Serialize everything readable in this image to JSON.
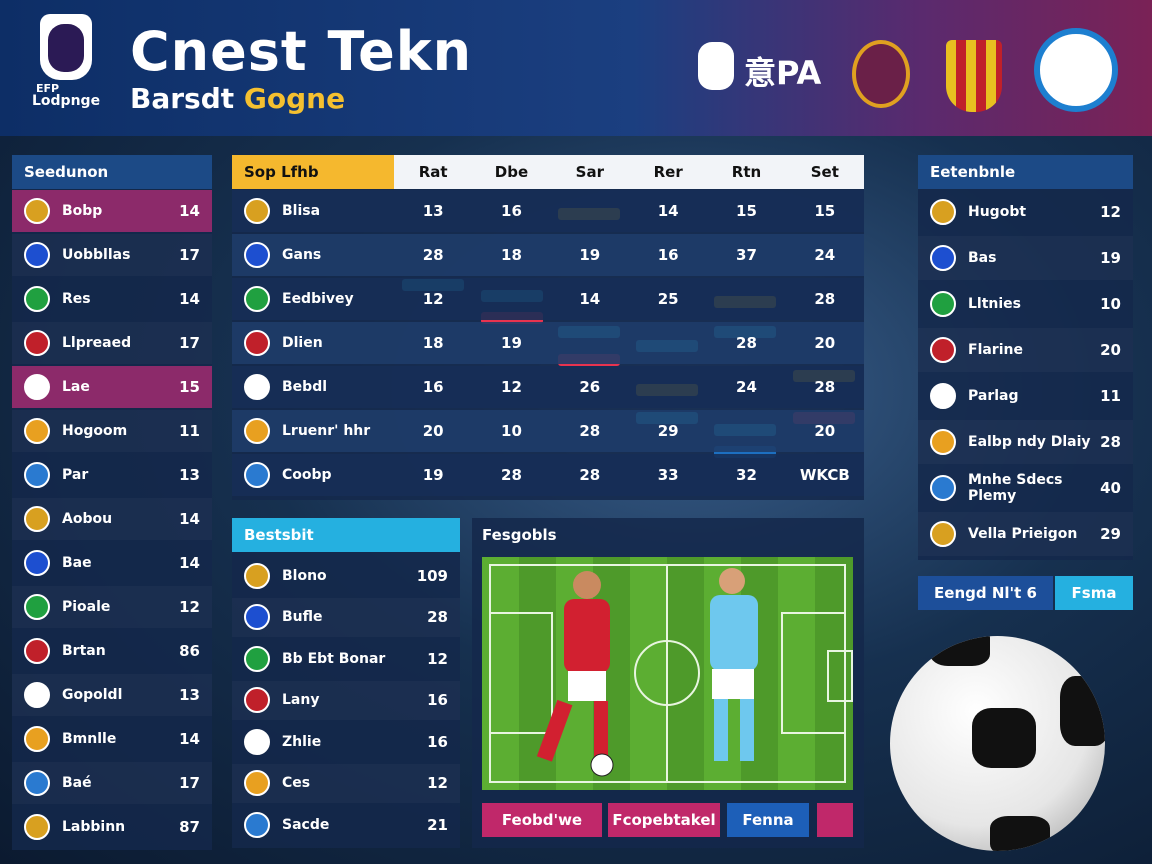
{
  "header": {
    "logo": "Lodpnge",
    "logo_top": "EFP",
    "title": "Cnest Tekn",
    "subtitle_a": "Barsdt",
    "subtitle_b": "Gogne",
    "badge": "意PA"
  },
  "left_panel": {
    "title": "Seedunon",
    "rows": [
      {
        "name": "Bobp",
        "value": 14
      },
      {
        "name": "Uobbllas",
        "value": 17
      },
      {
        "name": "Res",
        "value": 14
      },
      {
        "name": "Llpreaed",
        "value": 17
      },
      {
        "name": "Lae",
        "value": 15
      },
      {
        "name": "Hogoom",
        "value": 11
      },
      {
        "name": "Par",
        "value": 13
      },
      {
        "name": "Aobou",
        "value": 14
      },
      {
        "name": "Bae",
        "value": 14
      },
      {
        "name": "Pioale",
        "value": 12
      },
      {
        "name": "Brtan",
        "value": 86
      },
      {
        "name": "Gopoldl",
        "value": 13
      },
      {
        "name": "Bmnlle",
        "value": 14
      },
      {
        "name": "Baé",
        "value": 17
      },
      {
        "name": "Labbinn",
        "value": 87
      }
    ]
  },
  "table": {
    "columns": [
      "Sop Lfhb",
      "Rat",
      "Dbe",
      "Sar",
      "Rer",
      "Rtn",
      "Set"
    ],
    "rows": [
      [
        "Blisa",
        13,
        16,
        null,
        14,
        15,
        15
      ],
      [
        "Gans",
        28,
        18,
        19,
        16,
        37,
        24
      ],
      [
        "Eedbivey",
        12,
        null,
        14,
        25,
        null,
        28
      ],
      [
        "Dlien",
        18,
        19,
        null,
        null,
        28,
        20
      ],
      [
        "Bebdl",
        16,
        12,
        26,
        null,
        24,
        28
      ],
      [
        "Lruenr' hhr",
        20,
        10,
        28,
        29,
        null,
        20
      ],
      [
        "Coobp",
        19,
        28,
        28,
        33,
        32,
        "WKCB"
      ]
    ]
  },
  "best_list": {
    "title": "Bestsbit",
    "rows": [
      {
        "name": "Blono",
        "value": 109
      },
      {
        "name": "Bufle",
        "value": 28
      },
      {
        "name": "Bb Ebt Bonar",
        "value": 12
      },
      {
        "name": "Lany",
        "value": 16
      },
      {
        "name": "Zhlie",
        "value": 16
      },
      {
        "name": "Ces",
        "value": 12
      },
      {
        "name": "Sacde",
        "value": 21
      }
    ]
  },
  "field_panel": {
    "title": "Fesgobls",
    "buttons": [
      "Feobd'we",
      "Fcopebtakel",
      "Fenna"
    ]
  },
  "right_panel": {
    "title": "Eetenbnle",
    "rows": [
      {
        "name": "Hugobt",
        "value": 12
      },
      {
        "name": "Bas",
        "value": 19
      },
      {
        "name": "Lltnies",
        "value": 10
      },
      {
        "name": "Flarine",
        "value": 20
      },
      {
        "name": "Parlag",
        "value": 11
      },
      {
        "name": "Ealbp ndy Dlaiy",
        "value": 28
      },
      {
        "name": "Mnhe Sdecs Plemy",
        "value": 40
      },
      {
        "name": "Vella Prieigon",
        "value": 29
      }
    ],
    "buttons": [
      "Eengd Nl't 6",
      "Fsma"
    ]
  }
}
